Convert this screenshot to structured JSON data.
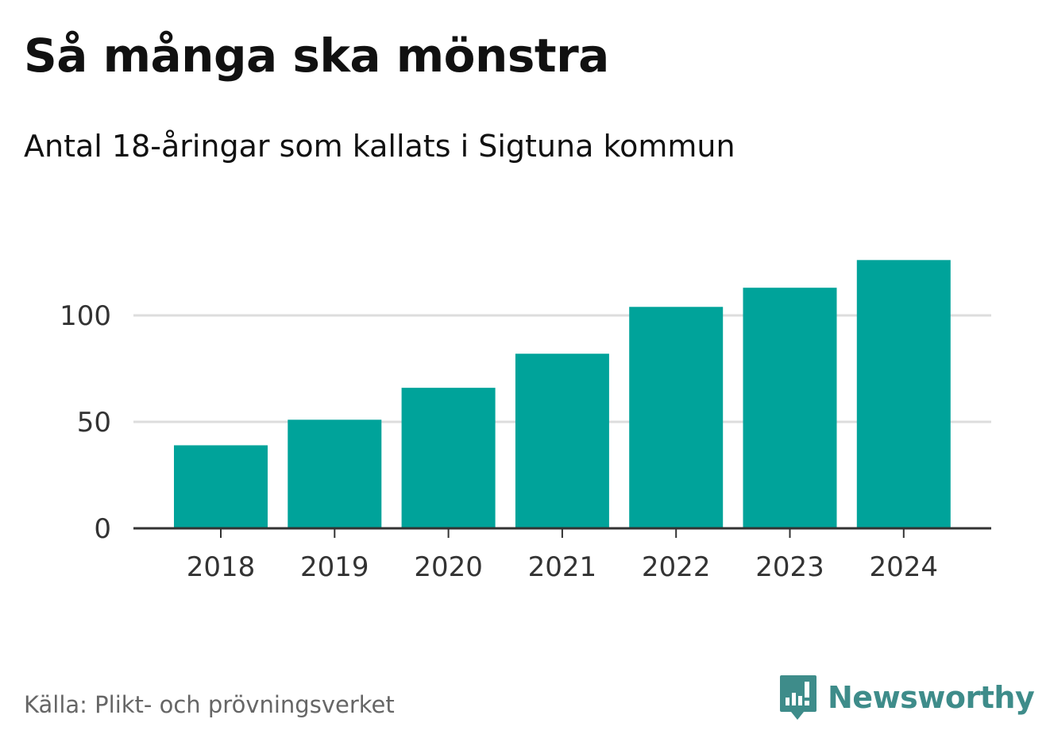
{
  "header": {
    "title": "Så många ska mönstra",
    "subtitle": "Antal 18-åringar som kallats i Sigtuna kommun"
  },
  "footer": {
    "source": "Källa: Plikt- och prövningsverket",
    "brand": "Newsworthy",
    "brand_icon": "newsworthy-logo-icon"
  },
  "colors": {
    "bar": "#00a39a",
    "grid": "#dddddd",
    "axis": "#333333",
    "tick_text": "#333333",
    "brand": "#3e8c8a"
  },
  "chart_data": {
    "type": "bar",
    "title": "Så många ska mönstra",
    "subtitle": "Antal 18-åringar som kallats i Sigtuna kommun",
    "categories": [
      "2018",
      "2019",
      "2020",
      "2021",
      "2022",
      "2023",
      "2024"
    ],
    "values": [
      39,
      51,
      66,
      82,
      104,
      113,
      126
    ],
    "yticks": [
      0,
      50,
      100
    ],
    "ylim": [
      0,
      126
    ],
    "xlabel": "",
    "ylabel": "",
    "grid": true,
    "legend": "none"
  }
}
